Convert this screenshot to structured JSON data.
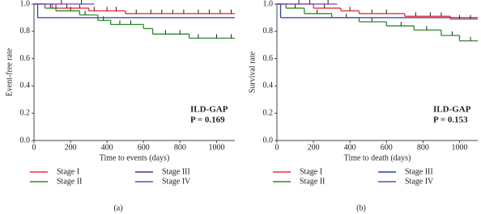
{
  "chart_data": [
    {
      "type": "step",
      "caption": "(a)",
      "xlabel": "Time to events (days)",
      "ylabel": "Event-free rate",
      "annotations": [
        "ILD-GAP",
        "P = 0.169"
      ],
      "legend": "bottom",
      "xlim": [
        0,
        1100
      ],
      "ylim": [
        0,
        1
      ],
      "xticks": [
        0,
        200,
        400,
        600,
        800,
        1000
      ],
      "yticks": [
        {
          "value": 0,
          "label": "0.0"
        },
        0.2,
        0.4,
        0.6,
        0.8,
        {
          "value": 1,
          "label": "1.0"
        }
      ],
      "series": [
        {
          "name": "Stage I",
          "color": "#e8313a",
          "x": [
            0,
            100,
            300,
            500,
            1100
          ],
          "values": [
            1.0,
            0.97,
            0.95,
            0.93,
            0.93
          ],
          "censored": [
            120,
            180,
            250,
            330,
            400,
            450,
            560,
            640,
            700,
            760,
            820,
            900,
            960,
            1020,
            1080
          ]
        },
        {
          "name": "Stage II",
          "color": "#2a8a2a",
          "x": [
            0,
            60,
            120,
            250,
            350,
            420,
            600,
            650,
            850,
            1100
          ],
          "values": [
            1.0,
            0.97,
            0.95,
            0.92,
            0.88,
            0.85,
            0.82,
            0.78,
            0.75,
            0.75
          ],
          "censored": [
            90,
            200,
            280,
            380,
            470,
            530,
            720,
            800,
            900,
            1000,
            1080
          ]
        },
        {
          "name": "Stage III",
          "color": "#2b3f9e",
          "x": [
            0,
            20,
            1100
          ],
          "values": [
            1.0,
            0.9,
            0.9
          ],
          "censored": []
        },
        {
          "name": "Stage IV",
          "color": "#7b3fbf",
          "x": [
            0,
            330
          ],
          "values": [
            1.0,
            1.0
          ],
          "censored": [
            150,
            260
          ]
        }
      ]
    },
    {
      "type": "step",
      "caption": "(b)",
      "xlabel": "Time to death (days)",
      "ylabel": "Survival rate",
      "annotations": [
        "ILD-GAP",
        "P = 0.153"
      ],
      "legend": "bottom",
      "xlim": [
        0,
        1100
      ],
      "ylim": [
        0,
        1
      ],
      "xticks": [
        0,
        200,
        400,
        600,
        800,
        1000
      ],
      "yticks": [
        {
          "value": 0,
          "label": "0.0"
        },
        0.2,
        0.4,
        0.6,
        0.8,
        {
          "value": 1,
          "label": "1.0"
        }
      ],
      "series": [
        {
          "name": "Stage I",
          "color": "#e8313a",
          "x": [
            0,
            200,
            350,
            450,
            700,
            950,
            1100
          ],
          "values": [
            1.0,
            0.97,
            0.95,
            0.93,
            0.91,
            0.89,
            0.89
          ],
          "censored": [
            120,
            260,
            400,
            520,
            600,
            760,
            840,
            900,
            1000,
            1060
          ]
        },
        {
          "name": "Stage II",
          "color": "#2a8a2a",
          "x": [
            0,
            50,
            150,
            300,
            450,
            600,
            750,
            900,
            1000,
            1100
          ],
          "values": [
            1.0,
            0.97,
            0.93,
            0.9,
            0.87,
            0.84,
            0.81,
            0.77,
            0.73,
            0.73
          ],
          "censored": [
            100,
            220,
            380,
            520,
            680,
            820,
            960,
            1060
          ]
        },
        {
          "name": "Stage III",
          "color": "#2b3f9e",
          "x": [
            0,
            20,
            1100
          ],
          "values": [
            1.0,
            0.9,
            0.9
          ],
          "censored": []
        },
        {
          "name": "Stage IV",
          "color": "#7b3fbf",
          "x": [
            0,
            330
          ],
          "values": [
            1.0,
            1.0
          ],
          "censored": [
            180,
            280
          ]
        }
      ]
    }
  ]
}
